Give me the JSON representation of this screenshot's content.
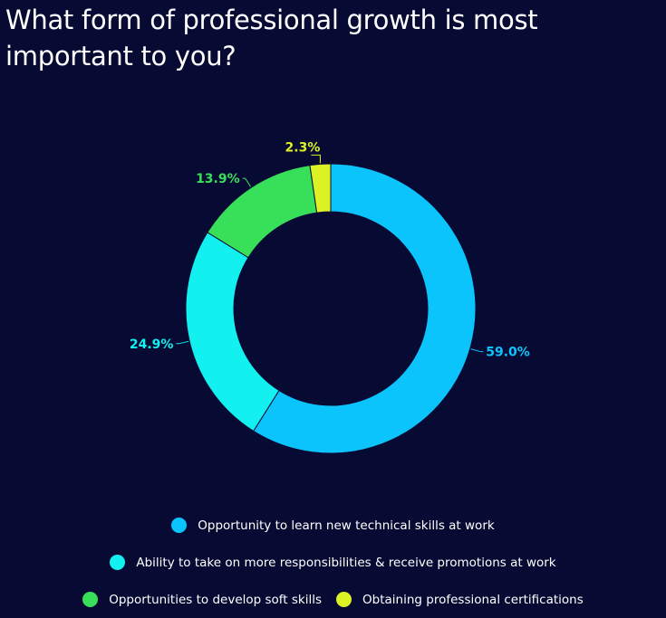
{
  "title": "What form of professional growth is most important to you?",
  "chart_data": {
    "type": "pie",
    "donut": true,
    "title": "What form of professional growth is most important to you?",
    "slices": [
      {
        "label": "Opportunity to learn new technical skills at work",
        "value": 59.0,
        "display": "59.0%",
        "color": "#0cc4fc"
      },
      {
        "label": "Ability to take on more responsibilities & receive promotions at work",
        "value": 24.9,
        "display": "24.9%",
        "color": "#12f0f0"
      },
      {
        "label": "Opportunities to develop soft skills",
        "value": 13.9,
        "display": "13.9%",
        "color": "#38e05a"
      },
      {
        "label": "Obtaining professional certifications",
        "value": 2.3,
        "display": "2.3%",
        "color": "#dcf224"
      }
    ],
    "legend_position": "bottom"
  }
}
